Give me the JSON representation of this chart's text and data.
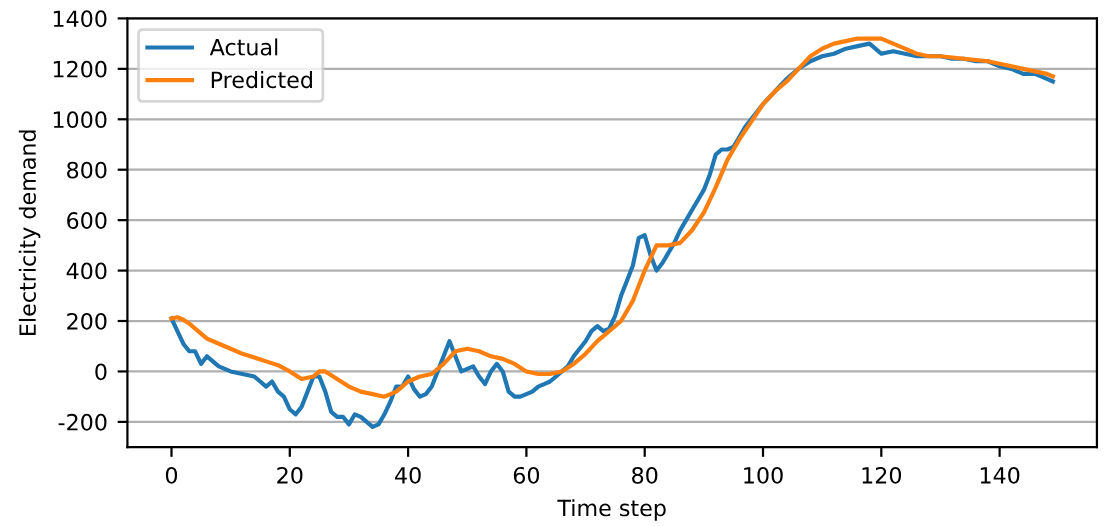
{
  "chart_data": {
    "type": "line",
    "xlabel": "Time step",
    "ylabel": "Electricity demand",
    "xlim": [
      -7.45,
      156.45
    ],
    "xticks": [
      0,
      20,
      40,
      60,
      80,
      100,
      120,
      140
    ],
    "ylim": [
      -300,
      1400
    ],
    "yticks": [
      -200,
      0,
      200,
      400,
      600,
      800,
      1000,
      1200,
      1400
    ],
    "grid": "y",
    "legend": "top left",
    "series": [
      {
        "name": "Actual",
        "color": "#1f77b4",
        "x": [
          0,
          1,
          2,
          3,
          4,
          5,
          6,
          7,
          8,
          10,
          12,
          14,
          15,
          16,
          17,
          18,
          19,
          20,
          21,
          22,
          23,
          24,
          25,
          26,
          27,
          28,
          29,
          30,
          31,
          32,
          33,
          34,
          35,
          36,
          37,
          38,
          39,
          40,
          41,
          42,
          43,
          44,
          45,
          46,
          47,
          48,
          49,
          50,
          51,
          52,
          53,
          54,
          55,
          56,
          57,
          58,
          59,
          60,
          61,
          62,
          63,
          64,
          65,
          66,
          67,
          68,
          69,
          70,
          71,
          72,
          73,
          74,
          75,
          76,
          77,
          78,
          79,
          80,
          81,
          82,
          83,
          84,
          85,
          86,
          87,
          88,
          89,
          90,
          91,
          92,
          93,
          94,
          95,
          96,
          97,
          98,
          99,
          100,
          102,
          104,
          106,
          108,
          110,
          112,
          114,
          116,
          118,
          119,
          120,
          122,
          124,
          126,
          130,
          132,
          134,
          136,
          138,
          140,
          142,
          144,
          146,
          148,
          149
        ],
        "values": [
          210,
          160,
          110,
          80,
          80,
          30,
          60,
          40,
          20,
          0,
          -10,
          -20,
          -40,
          -60,
          -40,
          -80,
          -100,
          -150,
          -170,
          -140,
          -80,
          -20,
          -20,
          -80,
          -160,
          -180,
          -180,
          -210,
          -170,
          -180,
          -200,
          -220,
          -210,
          -170,
          -120,
          -60,
          -60,
          -20,
          -70,
          -100,
          -90,
          -60,
          0,
          60,
          120,
          60,
          0,
          10,
          20,
          -20,
          -50,
          0,
          30,
          0,
          -80,
          -100,
          -100,
          -90,
          -80,
          -60,
          -50,
          -40,
          -20,
          0,
          20,
          60,
          90,
          120,
          160,
          180,
          160,
          170,
          220,
          300,
          360,
          420,
          530,
          540,
          460,
          400,
          430,
          470,
          510,
          560,
          600,
          640,
          680,
          720,
          780,
          860,
          880,
          880,
          890,
          930,
          970,
          1000,
          1030,
          1060,
          1110,
          1160,
          1200,
          1230,
          1250,
          1260,
          1280,
          1290,
          1300,
          1280,
          1260,
          1270,
          1260,
          1250,
          1250,
          1240,
          1240,
          1230,
          1230,
          1210,
          1200,
          1180,
          1180,
          1160,
          1150
        ]
      },
      {
        "name": "Predicted",
        "color": "#ff7f0e",
        "x": [
          0,
          1,
          2,
          3,
          4,
          6,
          8,
          10,
          12,
          14,
          16,
          18,
          20,
          22,
          24,
          25,
          26,
          28,
          30,
          32,
          34,
          36,
          38,
          40,
          42,
          44,
          46,
          48,
          50,
          52,
          54,
          56,
          58,
          60,
          62,
          64,
          66,
          68,
          70,
          72,
          74,
          76,
          78,
          80,
          82,
          84,
          86,
          88,
          90,
          92,
          94,
          96,
          98,
          100,
          102,
          104,
          106,
          108,
          110,
          112,
          114,
          116,
          118,
          120,
          122,
          124,
          126,
          128,
          130,
          134,
          138,
          140,
          144,
          148,
          149
        ],
        "values": [
          210,
          215,
          205,
          190,
          170,
          130,
          110,
          90,
          70,
          55,
          40,
          25,
          0,
          -30,
          -20,
          0,
          0,
          -30,
          -60,
          -80,
          -90,
          -100,
          -80,
          -40,
          -20,
          -10,
          30,
          80,
          90,
          80,
          60,
          50,
          30,
          0,
          -10,
          -10,
          0,
          30,
          70,
          120,
          160,
          200,
          280,
          400,
          500,
          500,
          510,
          560,
          630,
          730,
          840,
          920,
          990,
          1060,
          1110,
          1150,
          1200,
          1250,
          1280,
          1300,
          1310,
          1320,
          1320,
          1320,
          1300,
          1280,
          1260,
          1250,
          1250,
          1240,
          1230,
          1220,
          1200,
          1180,
          1170
        ]
      }
    ]
  }
}
